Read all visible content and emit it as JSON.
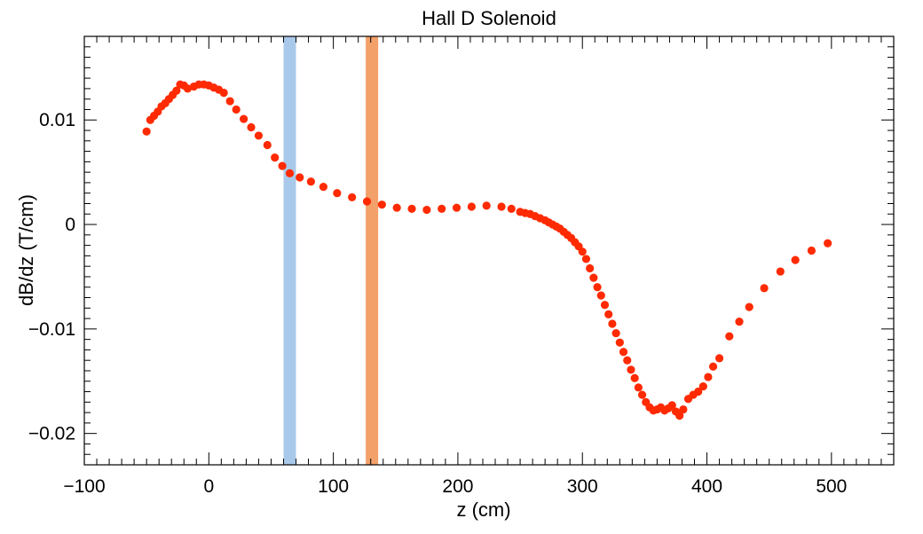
{
  "chart_data": {
    "type": "scatter",
    "title": "Hall D Solenoid",
    "xlabel": "z (cm)",
    "ylabel": "dB/dz (T/cm)",
    "xlim": [
      -100,
      550
    ],
    "ylim": [
      -0.023,
      0.018
    ],
    "x_ticks": [
      -100,
      0,
      100,
      200,
      300,
      400,
      500
    ],
    "x_tick_labels": [
      "−100",
      "0",
      "100",
      "200",
      "300",
      "400",
      "500"
    ],
    "y_ticks": [
      -0.02,
      -0.01,
      0,
      0.01
    ],
    "y_tick_labels": [
      "−0.02",
      "−0.01",
      "0",
      "0.01"
    ],
    "marker_color": "#ff2a00",
    "bands": [
      {
        "name": "band-blue",
        "x_range": [
          60,
          70
        ],
        "color": "#a9c9ea"
      },
      {
        "name": "band-orange",
        "x_range": [
          126,
          136
        ],
        "color": "#f3a06a"
      }
    ],
    "series": [
      {
        "name": "dB/dz",
        "points": [
          [
            -50,
            0.0089
          ],
          [
            -47,
            0.01
          ],
          [
            -44,
            0.0104
          ],
          [
            -41,
            0.0108
          ],
          [
            -38,
            0.0113
          ],
          [
            -35,
            0.0116
          ],
          [
            -32,
            0.012
          ],
          [
            -29,
            0.0124
          ],
          [
            -26,
            0.0128
          ],
          [
            -23,
            0.0134
          ],
          [
            -20,
            0.0133
          ],
          [
            -17,
            0.013
          ],
          [
            -12,
            0.0132
          ],
          [
            -8,
            0.0134
          ],
          [
            -4,
            0.0134
          ],
          [
            0,
            0.0133
          ],
          [
            4,
            0.0131
          ],
          [
            8,
            0.0129
          ],
          [
            12,
            0.0126
          ],
          [
            17,
            0.0118
          ],
          [
            22,
            0.011
          ],
          [
            28,
            0.0101
          ],
          [
            34,
            0.0093
          ],
          [
            40,
            0.0085
          ],
          [
            47,
            0.0076
          ],
          [
            53,
            0.0064
          ],
          [
            59,
            0.0056
          ],
          [
            65,
            0.0049
          ],
          [
            73,
            0.0045
          ],
          [
            82,
            0.0041
          ],
          [
            92,
            0.0036
          ],
          [
            103,
            0.003
          ],
          [
            115,
            0.0026
          ],
          [
            127,
            0.0022
          ],
          [
            139,
            0.0019
          ],
          [
            151,
            0.0016
          ],
          [
            163,
            0.0015
          ],
          [
            175,
            0.0014
          ],
          [
            187,
            0.0015
          ],
          [
            199,
            0.0016
          ],
          [
            211,
            0.0017
          ],
          [
            223,
            0.0018
          ],
          [
            235,
            0.0017
          ],
          [
            243,
            0.0015
          ],
          [
            250,
            0.0012
          ],
          [
            254,
            0.0011
          ],
          [
            258,
            0.001
          ],
          [
            262,
            0.0008
          ],
          [
            266,
            0.0006
          ],
          [
            270,
            0.0004
          ],
          [
            273,
            0.0002
          ],
          [
            276,
            0.0
          ],
          [
            279,
            -0.0002
          ],
          [
            282,
            -0.0004
          ],
          [
            285,
            -0.0007
          ],
          [
            288,
            -0.001
          ],
          [
            291,
            -0.0013
          ],
          [
            294,
            -0.0017
          ],
          [
            297,
            -0.0021
          ],
          [
            300,
            -0.0026
          ],
          [
            303,
            -0.0033
          ],
          [
            306,
            -0.0042
          ],
          [
            309,
            -0.0051
          ],
          [
            312,
            -0.006
          ],
          [
            315,
            -0.0068
          ],
          [
            318,
            -0.0077
          ],
          [
            321,
            -0.0086
          ],
          [
            324,
            -0.0095
          ],
          [
            327,
            -0.0104
          ],
          [
            330,
            -0.0113
          ],
          [
            333,
            -0.0122
          ],
          [
            336,
            -0.013
          ],
          [
            339,
            -0.0139
          ],
          [
            342,
            -0.0147
          ],
          [
            345,
            -0.0156
          ],
          [
            348,
            -0.0163
          ],
          [
            351,
            -0.017
          ],
          [
            354,
            -0.0175
          ],
          [
            357,
            -0.0178
          ],
          [
            360,
            -0.0177
          ],
          [
            363,
            -0.0175
          ],
          [
            366,
            -0.0178
          ],
          [
            369,
            -0.0176
          ],
          [
            372,
            -0.0173
          ],
          [
            375,
            -0.0179
          ],
          [
            378,
            -0.0183
          ],
          [
            381,
            -0.0177
          ],
          [
            385,
            -0.0167
          ],
          [
            389,
            -0.0163
          ],
          [
            393,
            -0.016
          ],
          [
            397,
            -0.0155
          ],
          [
            401,
            -0.0146
          ],
          [
            405,
            -0.0136
          ],
          [
            410,
            -0.0128
          ],
          [
            418,
            -0.0107
          ],
          [
            426,
            -0.0093
          ],
          [
            434,
            -0.0079
          ],
          [
            446,
            -0.0061
          ],
          [
            459,
            -0.0045
          ],
          [
            471,
            -0.0034
          ],
          [
            484,
            -0.0025
          ],
          [
            497,
            -0.0018
          ]
        ]
      }
    ]
  }
}
